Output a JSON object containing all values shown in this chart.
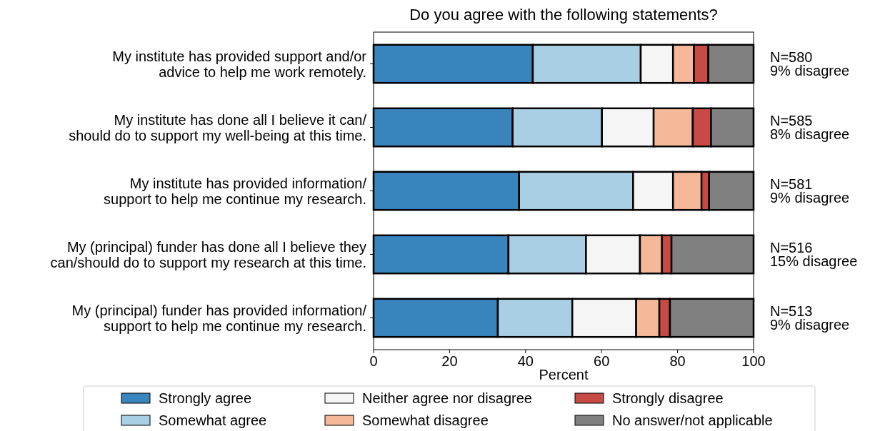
{
  "chart_data": {
    "type": "bar",
    "orientation": "horizontal",
    "stacked": true,
    "title": "Do you agree with the following statements?",
    "xlabel": "Percent",
    "categories": [
      "My institute has provided support and/or\nadvice to help me work remotely.",
      "My institute has done all I believe it can/\nshould do to support my well-being at this time.",
      "My institute has provided information/\nsupport to help me continue my research.",
      "My (principal) funder has done all I believe they\ncan/should do to support my research at this time.",
      "My (principal) funder has provided information/\nsupport to help me continue my research."
    ],
    "series": [
      {
        "name": "Strongly agree",
        "color": "#3a84bd",
        "values": [
          41.9,
          36.6,
          38.3,
          35.5,
          32.7
        ]
      },
      {
        "name": "Somewhat agree",
        "color": "#a8cfe3",
        "values": [
          28.4,
          23.5,
          30.0,
          20.4,
          19.6
        ]
      },
      {
        "name": "Neither agree nor disagree",
        "color": "#f5f5f5",
        "values": [
          8.5,
          13.6,
          10.5,
          14.2,
          16.8
        ]
      },
      {
        "name": "Somewhat disagree",
        "color": "#f5b898",
        "values": [
          5.5,
          10.3,
          7.5,
          5.8,
          6.1
        ]
      },
      {
        "name": "Strongly disagree",
        "color": "#c84a45",
        "values": [
          3.8,
          4.8,
          2.0,
          2.5,
          2.8
        ]
      },
      {
        "name": "No answer/not applicable",
        "color": "#808080",
        "values": [
          11.9,
          11.2,
          11.7,
          21.6,
          22.0
        ]
      }
    ],
    "xlim": [
      0,
      100
    ],
    "xticks": [
      0,
      20,
      40,
      60,
      80,
      100
    ],
    "legend": "bottom",
    "annotations": [
      "N=580\n9% disagree",
      "N=585\n8% disagree",
      "N=581\n9% disagree",
      "N=516\n15% disagree",
      "N=513\n9% disagree"
    ]
  }
}
